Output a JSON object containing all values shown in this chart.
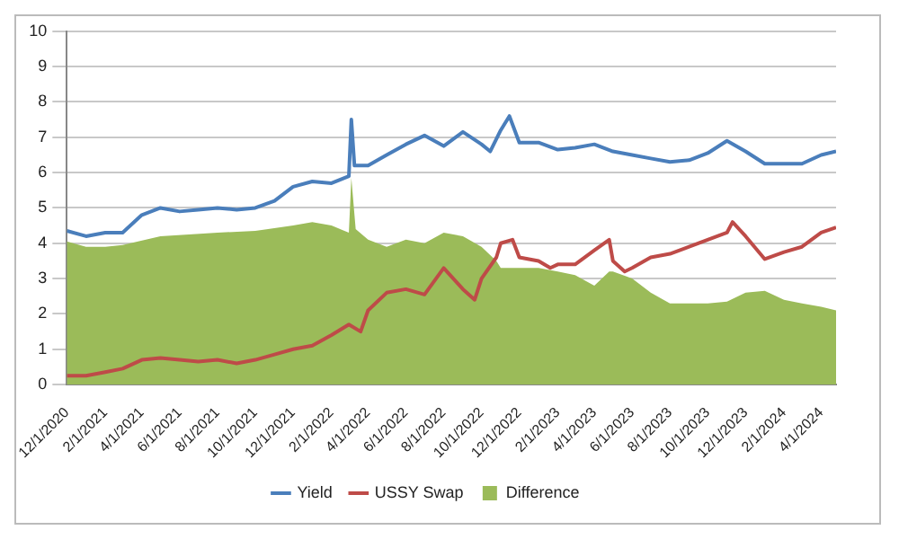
{
  "chart_data": {
    "type": "line",
    "xlim": [
      "2020-12-01",
      "2024-04-25"
    ],
    "xticks": [
      {
        "value": "2020-12-01",
        "label": "12/1/2020"
      },
      {
        "value": "2021-02-01",
        "label": "2/1/2021"
      },
      {
        "value": "2021-04-01",
        "label": "4/1/2021"
      },
      {
        "value": "2021-06-01",
        "label": "6/1/2021"
      },
      {
        "value": "2021-08-01",
        "label": "8/1/2021"
      },
      {
        "value": "2021-10-01",
        "label": "10/1/2021"
      },
      {
        "value": "2021-12-01",
        "label": "12/1/2021"
      },
      {
        "value": "2022-02-01",
        "label": "2/1/2022"
      },
      {
        "value": "2022-04-01",
        "label": "4/1/2022"
      },
      {
        "value": "2022-06-01",
        "label": "6/1/2022"
      },
      {
        "value": "2022-08-01",
        "label": "8/1/2022"
      },
      {
        "value": "2022-10-01",
        "label": "10/1/2022"
      },
      {
        "value": "2022-12-01",
        "label": "12/1/2022"
      },
      {
        "value": "2023-02-01",
        "label": "2/1/2023"
      },
      {
        "value": "2023-04-01",
        "label": "4/1/2023"
      },
      {
        "value": "2023-06-01",
        "label": "6/1/2023"
      },
      {
        "value": "2023-08-01",
        "label": "8/1/2023"
      },
      {
        "value": "2023-10-01",
        "label": "10/1/2023"
      },
      {
        "value": "2023-12-01",
        "label": "12/1/2023"
      },
      {
        "value": "2024-02-01",
        "label": "2/1/2024"
      },
      {
        "value": "2024-04-01",
        "label": "4/1/2024"
      }
    ],
    "ylim": [
      0,
      10
    ],
    "yticks": [
      0,
      1,
      2,
      3,
      4,
      5,
      6,
      7,
      8,
      9,
      10
    ],
    "grid": "y",
    "legend": "bottom",
    "marker": "none",
    "series": [
      {
        "name": "Difference",
        "type": "area",
        "color": "#9bbb59",
        "x": [
          "2020-12-01",
          "2021-01-01",
          "2021-02-01",
          "2021-03-01",
          "2021-05-01",
          "2021-08-01",
          "2021-10-01",
          "2021-12-01",
          "2022-01-01",
          "2022-02-01",
          "2022-03-01",
          "2022-03-05",
          "2022-03-12",
          "2022-04-01",
          "2022-05-01",
          "2022-06-01",
          "2022-07-01",
          "2022-08-01",
          "2022-09-01",
          "2022-10-01",
          "2022-10-25",
          "2022-11-01",
          "2022-12-01",
          "2023-01-01",
          "2023-02-01",
          "2023-03-01",
          "2023-04-01",
          "2023-04-25",
          "2023-05-01",
          "2023-06-01",
          "2023-07-01",
          "2023-08-01",
          "2023-09-01",
          "2023-10-01",
          "2023-11-01",
          "2023-12-01",
          "2024-01-01",
          "2024-02-01",
          "2024-03-01",
          "2024-04-01",
          "2024-04-25"
        ],
        "values": [
          4.05,
          3.9,
          3.9,
          3.95,
          4.2,
          4.3,
          4.35,
          4.5,
          4.6,
          4.5,
          4.3,
          5.85,
          4.4,
          4.1,
          3.9,
          4.1,
          4.0,
          4.3,
          4.2,
          3.9,
          3.5,
          3.3,
          3.3,
          3.3,
          3.2,
          3.1,
          2.8,
          3.2,
          3.2,
          3.0,
          2.6,
          2.3,
          2.3,
          2.3,
          2.35,
          2.6,
          2.65,
          2.4,
          2.3,
          2.2,
          2.1
        ]
      },
      {
        "name": "Yield",
        "color": "#4a7ebb",
        "x": [
          "2020-12-01",
          "2021-01-01",
          "2021-02-01",
          "2021-03-01",
          "2021-04-01",
          "2021-05-01",
          "2021-06-01",
          "2021-07-01",
          "2021-08-01",
          "2021-09-01",
          "2021-10-01",
          "2021-11-01",
          "2021-12-01",
          "2022-01-01",
          "2022-02-01",
          "2022-03-01",
          "2022-03-05",
          "2022-03-10",
          "2022-04-01",
          "2022-05-01",
          "2022-06-01",
          "2022-07-01",
          "2022-08-01",
          "2022-09-01",
          "2022-10-01",
          "2022-10-15",
          "2022-11-01",
          "2022-11-15",
          "2022-12-01",
          "2023-01-01",
          "2023-02-01",
          "2023-03-01",
          "2023-04-01",
          "2023-05-01",
          "2023-06-01",
          "2023-07-01",
          "2023-08-01",
          "2023-09-01",
          "2023-10-01",
          "2023-11-01",
          "2023-12-01",
          "2024-01-01",
          "2024-02-01",
          "2024-03-01",
          "2024-04-01",
          "2024-04-25"
        ],
        "values": [
          4.35,
          4.2,
          4.3,
          4.3,
          4.8,
          5.0,
          4.9,
          4.95,
          5.0,
          4.95,
          5.0,
          5.2,
          5.6,
          5.75,
          5.7,
          5.9,
          7.5,
          6.2,
          6.2,
          6.5,
          6.8,
          7.05,
          6.75,
          7.15,
          6.8,
          6.6,
          7.2,
          7.6,
          6.85,
          6.85,
          6.65,
          6.7,
          6.8,
          6.6,
          6.5,
          6.4,
          6.3,
          6.35,
          6.55,
          6.9,
          6.6,
          6.25,
          6.25,
          6.25,
          6.5,
          6.6
        ]
      },
      {
        "name": "USSY Swap",
        "color": "#be4b48",
        "x": [
          "2020-12-01",
          "2021-01-01",
          "2021-02-01",
          "2021-03-01",
          "2021-04-01",
          "2021-05-01",
          "2021-06-01",
          "2021-07-01",
          "2021-08-01",
          "2021-09-01",
          "2021-10-01",
          "2021-11-01",
          "2021-12-01",
          "2022-01-01",
          "2022-02-01",
          "2022-03-01",
          "2022-03-20",
          "2022-04-01",
          "2022-05-01",
          "2022-06-01",
          "2022-07-01",
          "2022-08-01",
          "2022-09-01",
          "2022-09-20",
          "2022-10-01",
          "2022-10-25",
          "2022-11-01",
          "2022-11-20",
          "2022-12-01",
          "2023-01-01",
          "2023-01-20",
          "2023-02-01",
          "2023-03-01",
          "2023-04-01",
          "2023-04-25",
          "2023-05-01",
          "2023-05-20",
          "2023-06-01",
          "2023-07-01",
          "2023-08-01",
          "2023-09-01",
          "2023-10-01",
          "2023-11-01",
          "2023-11-10",
          "2023-12-01",
          "2024-01-01",
          "2024-02-01",
          "2024-03-01",
          "2024-04-01",
          "2024-04-25"
        ],
        "values": [
          0.25,
          0.25,
          0.35,
          0.45,
          0.7,
          0.75,
          0.7,
          0.65,
          0.7,
          0.6,
          0.7,
          0.85,
          1.0,
          1.1,
          1.4,
          1.7,
          1.5,
          2.1,
          2.6,
          2.7,
          2.55,
          3.3,
          2.7,
          2.4,
          3.0,
          3.6,
          4.0,
          4.1,
          3.6,
          3.5,
          3.3,
          3.4,
          3.4,
          3.8,
          4.1,
          3.5,
          3.2,
          3.3,
          3.6,
          3.7,
          3.9,
          4.1,
          4.3,
          4.6,
          4.2,
          3.55,
          3.75,
          3.9,
          4.3,
          4.45
        ]
      }
    ]
  }
}
